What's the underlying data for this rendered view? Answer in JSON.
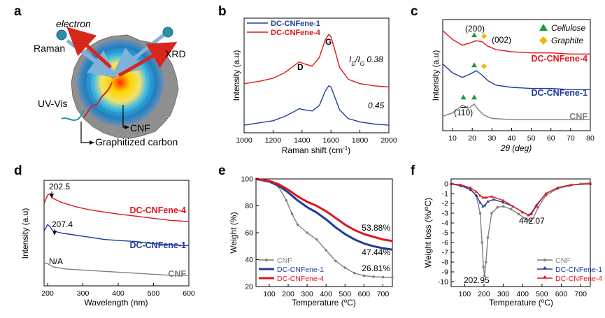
{
  "panel_labels": [
    "a",
    "b",
    "c",
    "d",
    "e",
    "f"
  ],
  "schematic": {
    "labels": [
      "electron",
      "Raman",
      "XRD",
      "UV-Vis",
      "CNF",
      "Graphitized carbon"
    ],
    "colors": {
      "grey_particle": "#8f8f8f",
      "arrow_red": "#d9261c",
      "arrow_blue": "#7fb2d8",
      "ball": "#2b8fa8"
    }
  },
  "chart_data": [
    {
      "panel": "b",
      "type": "line",
      "xlabel": "Raman shift (cm",
      "xlabel_sup": "-1",
      "xlabel_tail": ")",
      "ylabel": "Intensity (a.u)",
      "xlim": [
        1000,
        2000
      ],
      "xticks": [
        "1000",
        "1200",
        "1400",
        "1600",
        "1800",
        "2000"
      ],
      "legend": [
        "DC-CNFene-1",
        "DC-CNFene-4"
      ],
      "peak_labels": [
        "D",
        "G"
      ],
      "ratio_label": "I",
      "ratio_sub_d": "D",
      "ratio_slash": "/I",
      "ratio_sub_g": "G",
      "ratio_values": [
        "0.38",
        "0.45"
      ],
      "series": [
        {
          "name": "DC-CNFene-4",
          "color": "#e0151b",
          "x": [
            1000,
            1100,
            1200,
            1280,
            1340,
            1380,
            1420,
            1470,
            1520,
            1560,
            1585,
            1600,
            1620,
            1660,
            1720,
            1800,
            1900,
            2000
          ],
          "y": [
            0.4,
            0.42,
            0.45,
            0.5,
            0.56,
            0.6,
            0.58,
            0.56,
            0.64,
            0.8,
            0.85,
            0.83,
            0.74,
            0.55,
            0.44,
            0.4,
            0.38,
            0.37
          ]
        },
        {
          "name": "DC-CNFene-1",
          "color": "#1f3d99",
          "x": [
            1000,
            1100,
            1200,
            1280,
            1340,
            1380,
            1420,
            1470,
            1520,
            1560,
            1585,
            1600,
            1620,
            1660,
            1720,
            1800,
            1900,
            2000
          ],
          "y": [
            0.02,
            0.04,
            0.06,
            0.1,
            0.14,
            0.17,
            0.16,
            0.15,
            0.2,
            0.33,
            0.38,
            0.37,
            0.3,
            0.16,
            0.08,
            0.05,
            0.03,
            0.02
          ]
        }
      ]
    },
    {
      "panel": "c",
      "type": "line",
      "xlabel": "2θ (deg)",
      "ylabel": "Intensity (a.u)",
      "xlim": [
        5,
        80
      ],
      "xticks": [
        "10",
        "20",
        "30",
        "40",
        "50",
        "60",
        "70",
        "80"
      ],
      "legend": [
        "Cellulose",
        "Graphite"
      ],
      "peak_labels": [
        "(200)",
        "(002)",
        "(1",
        "1",
        "0)"
      ],
      "series": [
        {
          "name": "DC-CNFene-4",
          "color": "#e0151b",
          "x": [
            5,
            10,
            15,
            19,
            22,
            25,
            28,
            32,
            40,
            50,
            60,
            70,
            80
          ],
          "y": [
            0.9,
            0.82,
            0.77,
            0.79,
            0.81,
            0.8,
            0.76,
            0.73,
            0.71,
            0.7,
            0.7,
            0.69,
            0.69
          ]
        },
        {
          "name": "DC-CNFene-1",
          "color": "#1f3d99",
          "x": [
            5,
            10,
            15,
            19,
            22,
            25,
            28,
            32,
            40,
            50,
            60,
            70,
            80
          ],
          "y": [
            0.6,
            0.52,
            0.48,
            0.51,
            0.54,
            0.5,
            0.45,
            0.41,
            0.39,
            0.38,
            0.38,
            0.37,
            0.37
          ]
        },
        {
          "name": "CNF",
          "color": "#808080",
          "x": [
            5,
            10,
            15,
            18,
            21,
            23,
            26,
            30,
            40,
            50,
            60,
            70,
            80
          ],
          "y": [
            0.13,
            0.16,
            0.23,
            0.2,
            0.24,
            0.19,
            0.14,
            0.11,
            0.1,
            0.1,
            0.1,
            0.1,
            0.1
          ]
        }
      ],
      "markers": [
        {
          "type": "cellulose",
          "x": 21,
          "y": 0.86,
          "color": "#1a9a3c"
        },
        {
          "type": "graphite",
          "x": 26,
          "y": 0.85,
          "color": "#f2b705"
        },
        {
          "type": "cellulose",
          "x": 21,
          "y": 0.59,
          "color": "#1a9a3c"
        },
        {
          "type": "graphite",
          "x": 26,
          "y": 0.58,
          "color": "#f2b705"
        },
        {
          "type": "cellulose",
          "x": 15.5,
          "y": 0.3,
          "color": "#1a9a3c"
        },
        {
          "type": "cellulose",
          "x": 21,
          "y": 0.3,
          "color": "#1a9a3c"
        }
      ]
    },
    {
      "panel": "d",
      "type": "line",
      "xlabel": "Wavelength (nm)",
      "ylabel": "Intensity (a.u)",
      "xlim": [
        190,
        600
      ],
      "xticks": [
        "200",
        "300",
        "400",
        "500",
        "600"
      ],
      "annotations": [
        "202.5",
        "207.4",
        "N/A"
      ],
      "series": [
        {
          "name": "DC-CNFene-4",
          "color": "#e0151b",
          "x": [
            190,
            200,
            205,
            215,
            240,
            280,
            320,
            360,
            400,
            450,
            500,
            550,
            600
          ],
          "y": [
            0.78,
            0.86,
            0.87,
            0.83,
            0.79,
            0.75,
            0.72,
            0.7,
            0.68,
            0.66,
            0.64,
            0.62,
            0.61
          ]
        },
        {
          "name": "DC-CNFene-1",
          "color": "#1f3d99",
          "x": [
            190,
            200,
            207,
            215,
            240,
            280,
            320,
            360,
            400,
            450,
            500,
            550,
            600
          ],
          "y": [
            0.52,
            0.58,
            0.56,
            0.52,
            0.5,
            0.48,
            0.46,
            0.44,
            0.43,
            0.42,
            0.4,
            0.39,
            0.38
          ]
        },
        {
          "name": "CNF",
          "color": "#808080",
          "x": [
            190,
            200,
            215,
            250,
            300,
            350,
            400,
            450,
            500,
            550,
            600
          ],
          "y": [
            0.22,
            0.21,
            0.18,
            0.16,
            0.15,
            0.14,
            0.13,
            0.12,
            0.11,
            0.1,
            0.1
          ]
        }
      ]
    },
    {
      "panel": "e",
      "type": "line",
      "xlabel": "Temperature (",
      "xlabel_sup": "o",
      "xlabel_tail": "C)",
      "ylabel": "Weight (%)",
      "xlim": [
        30,
        750
      ],
      "ylim": [
        20,
        100
      ],
      "xticks": [
        "100",
        "200",
        "300",
        "400",
        "500",
        "600",
        "700"
      ],
      "yticks": [
        "20",
        "40",
        "60",
        "80",
        "100"
      ],
      "annotations": [
        "53.88%",
        "47.44%",
        "26.81%"
      ],
      "series": [
        {
          "name": "CNF",
          "color": "#808080",
          "x": [
            30,
            100,
            150,
            190,
            220,
            250,
            300,
            350,
            400,
            450,
            500,
            550,
            600,
            650,
            700,
            750
          ],
          "y": [
            100,
            98,
            94,
            84,
            74,
            66,
            60,
            55,
            47,
            39,
            34,
            30,
            28,
            27.3,
            27,
            26.81
          ]
        },
        {
          "name": "DC-CNFene-1",
          "color": "#1f3d99",
          "x": [
            30,
            100,
            150,
            200,
            250,
            300,
            350,
            400,
            450,
            500,
            550,
            600,
            650,
            700,
            750
          ],
          "y": [
            100,
            98,
            95,
            90,
            84,
            79,
            75,
            70,
            64,
            59,
            55,
            52,
            50,
            48.5,
            47.44
          ]
        },
        {
          "name": "DC-CNFene-4",
          "color": "#e0151b",
          "x": [
            30,
            100,
            150,
            200,
            250,
            300,
            350,
            400,
            450,
            500,
            550,
            600,
            650,
            700,
            750
          ],
          "y": [
            100,
            98.5,
            96,
            92,
            87,
            83,
            80,
            76,
            71,
            66,
            62,
            59,
            57,
            55,
            53.88
          ]
        }
      ]
    },
    {
      "panel": "f",
      "type": "line",
      "xlabel": "Temperature (",
      "xlabel_sup": "o",
      "xlabel_tail": "C)",
      "ylabel": "Weight loss (%/",
      "ylabel_sup": "o",
      "ylabel_tail": "C)",
      "xlim": [
        30,
        750
      ],
      "ylim": [
        -10.5,
        0.5
      ],
      "xticks": [
        "100",
        "200",
        "300",
        "400",
        "500",
        "600",
        "700"
      ],
      "yticks": [
        "-10",
        "-9",
        "-8",
        "-7",
        "-6",
        "-5",
        "-4",
        "-3",
        "-2",
        "-1",
        "0"
      ],
      "annotations": [
        "442.07",
        "202.95"
      ],
      "series": [
        {
          "name": "CNF",
          "color": "#808080",
          "x": [
            30,
            80,
            130,
            160,
            180,
            190,
            197,
            203,
            210,
            220,
            240,
            270,
            300,
            340,
            380,
            410,
            430,
            442,
            455,
            480,
            520,
            580,
            640,
            700,
            750
          ],
          "y": [
            0,
            -0.2,
            -0.5,
            -1.2,
            -3,
            -6,
            -8.5,
            -9.4,
            -8,
            -5.5,
            -3,
            -2.4,
            -2.3,
            -2.6,
            -3.1,
            -3.5,
            -3.7,
            -3.8,
            -3.5,
            -2.4,
            -1.2,
            -0.5,
            -0.2,
            0,
            0.1
          ]
        },
        {
          "name": "DC-CNFene-1",
          "color": "#1f3d99",
          "x": [
            30,
            80,
            130,
            160,
            180,
            195,
            205,
            220,
            250,
            300,
            350,
            400,
            430,
            445,
            470,
            520,
            580,
            650,
            750
          ],
          "y": [
            0,
            -0.2,
            -0.6,
            -1.2,
            -1.9,
            -2.3,
            -2.2,
            -1.8,
            -1.6,
            -1.9,
            -2.3,
            -2.9,
            -3.2,
            -3.0,
            -2.2,
            -1.0,
            -0.4,
            -0.1,
            0
          ]
        },
        {
          "name": "DC-CNFene-4",
          "color": "#e0151b",
          "x": [
            30,
            80,
            130,
            160,
            180,
            195,
            210,
            240,
            300,
            350,
            400,
            430,
            445,
            470,
            520,
            580,
            650,
            750
          ],
          "y": [
            0,
            -0.1,
            -0.4,
            -0.8,
            -1.2,
            -1.4,
            -1.4,
            -1.3,
            -1.7,
            -2.3,
            -2.9,
            -3.2,
            -3.1,
            -2.3,
            -1.0,
            -0.4,
            -0.1,
            0
          ]
        }
      ]
    }
  ]
}
